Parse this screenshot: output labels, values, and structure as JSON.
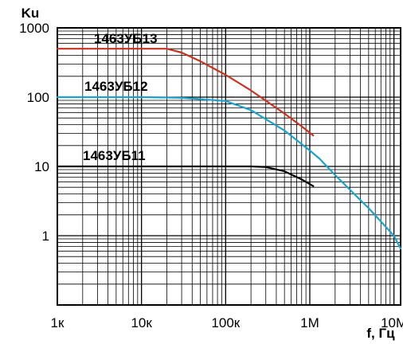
{
  "chart_data": {
    "type": "line",
    "title": "",
    "xlabel": "f, Гц",
    "ylabel": "Ku",
    "x_scale": "log",
    "y_scale": "log",
    "xlim": [
      1000,
      12000000
    ],
    "ylim": [
      0.1,
      1000
    ],
    "grid": true,
    "x_ticks": [
      {
        "value": 1000,
        "label": "1к"
      },
      {
        "value": 10000,
        "label": "10к"
      },
      {
        "value": 100000,
        "label": "100к"
      },
      {
        "value": 1000000,
        "label": "1М"
      },
      {
        "value": 10000000,
        "label": "10М"
      }
    ],
    "y_ticks": [
      {
        "value": 1000,
        "label": "1000"
      },
      {
        "value": 100,
        "label": "100"
      },
      {
        "value": 10,
        "label": "10"
      },
      {
        "value": 1,
        "label": "1"
      }
    ],
    "series": [
      {
        "name": "1463УБ13",
        "color": "#c8331f",
        "points": [
          [
            1000,
            500
          ],
          [
            10000,
            500
          ],
          [
            20000,
            500
          ],
          [
            30000,
            440
          ],
          [
            50000,
            330
          ],
          [
            100000,
            210
          ],
          [
            200000,
            125
          ],
          [
            500000,
            58
          ],
          [
            800000,
            38
          ],
          [
            1100000,
            28
          ]
        ]
      },
      {
        "name": "1463УБ12",
        "color": "#1aa3cf",
        "points": [
          [
            1000,
            100
          ],
          [
            10000,
            100
          ],
          [
            30000,
            98
          ],
          [
            100000,
            88
          ],
          [
            200000,
            65
          ],
          [
            500000,
            33
          ],
          [
            1000000,
            17
          ],
          [
            1300000,
            13
          ],
          [
            2000000,
            7.5
          ],
          [
            5000000,
            2.5
          ],
          [
            10000000,
            1.0
          ],
          [
            12000000,
            0.65
          ]
        ]
      },
      {
        "name": "1463УБ11",
        "color": "#000000",
        "points": [
          [
            1000,
            10
          ],
          [
            10000,
            10
          ],
          [
            100000,
            10
          ],
          [
            200000,
            10
          ],
          [
            300000,
            9.8
          ],
          [
            500000,
            8.5
          ],
          [
            800000,
            6.5
          ],
          [
            1100000,
            5.2
          ]
        ]
      }
    ]
  }
}
